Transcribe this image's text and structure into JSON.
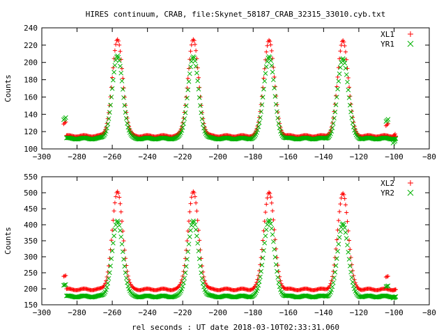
{
  "title": "HIRES continuum, CRAB, file:Skynet_58187_CRAB_32315_33010.cyb.txt",
  "xlabel": "rel seconds : UT date 2018-03-10T02:33:31.060",
  "chart_data": [
    {
      "type": "scatter",
      "title": "HIRES continuum, CRAB, file:Skynet_58187_CRAB_32315_33010.cyb.txt",
      "xlabel": "",
      "ylabel": "Counts",
      "xlim": [
        -300,
        -80
      ],
      "ylim": [
        100,
        240
      ],
      "xticks": [
        -300,
        -280,
        -260,
        -240,
        -220,
        -200,
        -180,
        -160,
        -140,
        -120,
        -100,
        -80
      ],
      "yticks": [
        100,
        120,
        140,
        160,
        180,
        200,
        220,
        240
      ],
      "legend_position": "top-right",
      "grid": false,
      "x_start": -286,
      "x_end": -99,
      "series": [
        {
          "name": "XL1",
          "color": "#ff0000",
          "marker": "plus",
          "baseline": 115,
          "peaks_x": [
            -257,
            -214,
            -171,
            -129
          ],
          "peaks_y": [
            226,
            226,
            226,
            226
          ],
          "edge_x": [
            -287,
            -104,
            -100
          ],
          "edge_y": [
            130,
            128,
            116
          ]
        },
        {
          "name": "YR1",
          "color": "#00b000",
          "marker": "cross",
          "baseline": 112,
          "peaks_x": [
            -257,
            -214,
            -171,
            -129
          ],
          "peaks_y": [
            207,
            206,
            207,
            205
          ],
          "edge_x": [
            -287,
            -104,
            -100
          ],
          "edge_y": [
            135,
            133,
            108
          ]
        }
      ]
    },
    {
      "type": "scatter",
      "xlabel": "rel seconds : UT date 2018-03-10T02:33:31.060",
      "ylabel": "Counts",
      "xlim": [
        -300,
        -80
      ],
      "ylim": [
        150,
        550
      ],
      "xticks": [
        -300,
        -280,
        -260,
        -240,
        -220,
        -200,
        -180,
        -160,
        -140,
        -120,
        -100,
        -80
      ],
      "yticks": [
        150,
        200,
        250,
        300,
        350,
        400,
        450,
        500,
        550
      ],
      "legend_position": "top-right",
      "grid": false,
      "x_start": -286,
      "x_end": -99,
      "series": [
        {
          "name": "XL2",
          "color": "#ff0000",
          "marker": "plus",
          "baseline": 198,
          "peaks_x": [
            -257,
            -214,
            -171,
            -129
          ],
          "peaks_y": [
            502,
            502,
            502,
            500
          ],
          "edge_x": [
            -287,
            -104,
            -100
          ],
          "edge_y": [
            240,
            238,
            196
          ]
        },
        {
          "name": "YR2",
          "color": "#00b000",
          "marker": "cross",
          "baseline": 176,
          "peaks_x": [
            -257,
            -214,
            -171,
            -129
          ],
          "peaks_y": [
            410,
            410,
            415,
            405
          ],
          "edge_x": [
            -287,
            -104,
            -100
          ],
          "edge_y": [
            212,
            208,
            172
          ]
        }
      ]
    }
  ]
}
